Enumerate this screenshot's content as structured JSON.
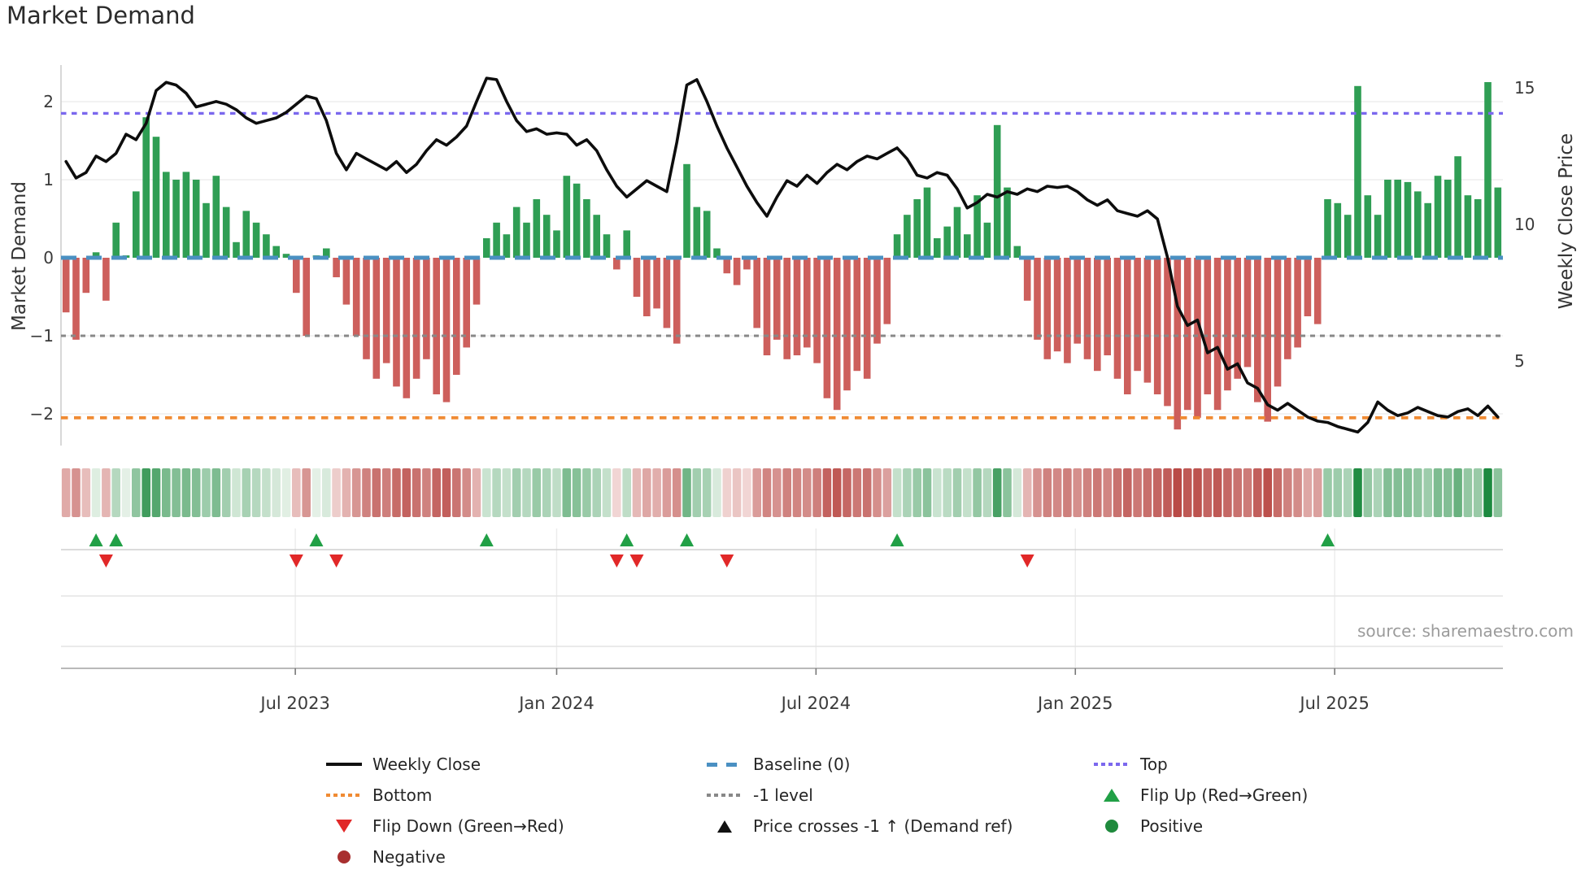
{
  "title": "Market Demand",
  "source_text": "source: sharemaestro.com",
  "axes": {
    "left_label": "Market Demand",
    "right_label": "Weekly Close Price",
    "left_ticks": [
      "2",
      "1",
      "0",
      "−1",
      "−2"
    ],
    "left_tick_values": [
      2,
      1,
      0,
      -1,
      -2
    ],
    "right_ticks": [
      "15",
      "10",
      "5"
    ],
    "right_tick_values": [
      15,
      10,
      5
    ],
    "x_ticks": [
      "Jul 2023",
      "Jan 2024",
      "Jul 2024",
      "Jan 2025",
      "Jul 2025"
    ],
    "x_tick_weeks": [
      23.4,
      49.5,
      75.4,
      101.3,
      127.2
    ]
  },
  "chart_data": {
    "type": "combo",
    "x_unit": "week",
    "n_weeks": 144,
    "series": [
      {
        "name": "Market Demand",
        "type": "bar",
        "axis": "left",
        "positive_color": "#2f9e54",
        "negative_color": "#cd5f5c",
        "values": [
          -0.7,
          -1.05,
          -0.45,
          0.07,
          -0.55,
          0.45,
          0.03,
          0.85,
          1.8,
          1.55,
          1.1,
          1.0,
          1.1,
          1.0,
          0.7,
          1.05,
          0.65,
          0.2,
          0.6,
          0.45,
          0.3,
          0.15,
          0.05,
          -0.45,
          -1.0,
          0.03,
          0.12,
          -0.25,
          -0.6,
          -1.0,
          -1.3,
          -1.55,
          -1.35,
          -1.65,
          -1.8,
          -1.55,
          -1.3,
          -1.75,
          -1.85,
          -1.5,
          -1.15,
          -0.6,
          0.25,
          0.45,
          0.3,
          0.65,
          0.45,
          0.75,
          0.55,
          0.35,
          1.05,
          0.95,
          0.75,
          0.55,
          0.3,
          -0.15,
          0.35,
          -0.5,
          -0.75,
          -0.65,
          -0.9,
          -1.1,
          1.2,
          0.65,
          0.6,
          0.12,
          -0.2,
          -0.35,
          -0.15,
          -0.9,
          -1.25,
          -1.05,
          -1.3,
          -1.25,
          -1.15,
          -1.35,
          -1.8,
          -1.95,
          -1.7,
          -1.45,
          -1.55,
          -1.1,
          -0.85,
          0.3,
          0.55,
          0.75,
          0.9,
          0.25,
          0.4,
          0.65,
          0.3,
          0.8,
          0.45,
          1.7,
          0.9,
          0.15,
          -0.55,
          -1.05,
          -1.3,
          -1.2,
          -1.35,
          -1.1,
          -1.3,
          -1.45,
          -1.25,
          -1.55,
          -1.75,
          -1.45,
          -1.6,
          -1.75,
          -1.9,
          -2.2,
          -1.95,
          -2.05,
          -1.75,
          -1.95,
          -1.7,
          -1.55,
          -1.4,
          -1.85,
          -2.1,
          -1.65,
          -1.3,
          -1.15,
          -0.75,
          -0.85,
          0.75,
          0.7,
          0.55,
          2.2,
          0.8,
          0.55,
          1.0,
          1.0,
          0.97,
          0.85,
          0.7,
          1.05,
          1.0,
          1.3,
          0.8,
          0.75,
          2.25,
          0.9
        ]
      },
      {
        "name": "Weekly Close",
        "type": "line",
        "axis": "right",
        "color": "#0d0d0d",
        "values": [
          12.3,
          11.7,
          11.9,
          12.5,
          12.3,
          12.6,
          13.3,
          13.1,
          13.7,
          14.9,
          15.2,
          15.1,
          14.8,
          14.3,
          14.4,
          14.5,
          14.4,
          14.2,
          13.9,
          13.7,
          13.8,
          13.9,
          14.1,
          14.4,
          14.7,
          14.6,
          13.8,
          12.6,
          12.0,
          12.6,
          12.4,
          12.2,
          12.0,
          12.3,
          11.9,
          12.2,
          12.7,
          13.1,
          12.9,
          13.2,
          13.6,
          14.5,
          15.35,
          15.3,
          14.5,
          13.8,
          13.4,
          13.5,
          13.3,
          13.35,
          13.3,
          12.9,
          13.1,
          12.7,
          12.0,
          11.4,
          11.0,
          11.3,
          11.6,
          11.4,
          11.2,
          13.0,
          15.1,
          15.3,
          14.5,
          13.6,
          12.8,
          12.1,
          11.4,
          10.8,
          10.3,
          11.0,
          11.6,
          11.4,
          11.8,
          11.5,
          11.9,
          12.2,
          12.0,
          12.3,
          12.5,
          12.4,
          12.6,
          12.8,
          12.4,
          11.8,
          11.7,
          11.9,
          11.8,
          11.3,
          10.6,
          10.8,
          11.1,
          11.0,
          11.2,
          11.1,
          11.3,
          11.2,
          11.4,
          11.35,
          11.4,
          11.2,
          10.9,
          10.7,
          10.9,
          10.5,
          10.4,
          10.3,
          10.5,
          10.2,
          8.8,
          7.0,
          6.3,
          6.5,
          5.3,
          5.5,
          4.7,
          4.9,
          4.2,
          4.0,
          3.4,
          3.2,
          3.45,
          3.2,
          2.95,
          2.8,
          2.75,
          2.6,
          2.5,
          2.4,
          2.75,
          3.5,
          3.2,
          3.0,
          3.1,
          3.3,
          3.15,
          3.0,
          2.95,
          3.15,
          3.25,
          3.0,
          3.35,
          2.95
        ]
      }
    ],
    "left_axis": {
      "label": "Market Demand",
      "ticks": [
        2,
        1,
        0,
        -1,
        -2
      ],
      "range": [
        -2.45,
        2.47
      ]
    },
    "right_axis": {
      "label": "Weekly Close Price",
      "ticks": [
        15,
        10,
        5
      ],
      "range": [
        2.0,
        15.96
      ]
    },
    "reference_lines": [
      {
        "name": "Top",
        "value": 1.85,
        "style": "dotted",
        "color": "#7b68ee"
      },
      {
        "name": "Baseline (0)",
        "value": 0,
        "style": "dashed",
        "color": "#4a90c2"
      },
      {
        "name": "-1 level",
        "value": -1,
        "style": "dotted",
        "color": "#888888"
      },
      {
        "name": "Bottom",
        "value": -2.05,
        "style": "dotted",
        "color": "#f08b33"
      }
    ],
    "markers": {
      "flip_up_weeks": [
        3,
        5,
        25,
        42,
        56,
        62,
        83,
        126
      ],
      "flip_down_weeks": [
        4,
        23,
        27,
        55,
        57,
        66,
        96
      ],
      "price_cross_weeks": []
    },
    "heatmap": {
      "green_dark": "#1d8a40",
      "green_light": "#e9f3ea",
      "red_dark": "#b84743",
      "red_light": "#f7e5e4",
      "max_abs": 2.25
    },
    "grid": "horizontal faint at left-axis ticks",
    "legend_position": "below chart, 3 columns"
  },
  "legend": {
    "items": [
      {
        "label": "Weekly Close",
        "swatch": "line",
        "color": "#111111"
      },
      {
        "label": "Baseline (0)",
        "swatch": "dashes",
        "color": "#4a90c2"
      },
      {
        "label": "Top",
        "swatch": "dots",
        "color": "#7b68ee"
      },
      {
        "label": "Bottom",
        "swatch": "dots",
        "color": "#f08b33"
      },
      {
        "label": "-1 level",
        "swatch": "dots",
        "color": "#888888"
      },
      {
        "label": "Flip Up (Red→Green)",
        "swatch": "triangle-up",
        "color": "#21a046"
      },
      {
        "label": "Flip Down (Green→Red)",
        "swatch": "triangle-down",
        "color": "#e12828"
      },
      {
        "label": "Price crosses -1 ↑ (Demand ref)",
        "swatch": "triangle-up",
        "color": "#111111"
      },
      {
        "label": "Positive",
        "swatch": "circle",
        "color": "#1f8a3d"
      },
      {
        "label": "Negative",
        "swatch": "circle",
        "color": "#a82f2f"
      }
    ]
  }
}
